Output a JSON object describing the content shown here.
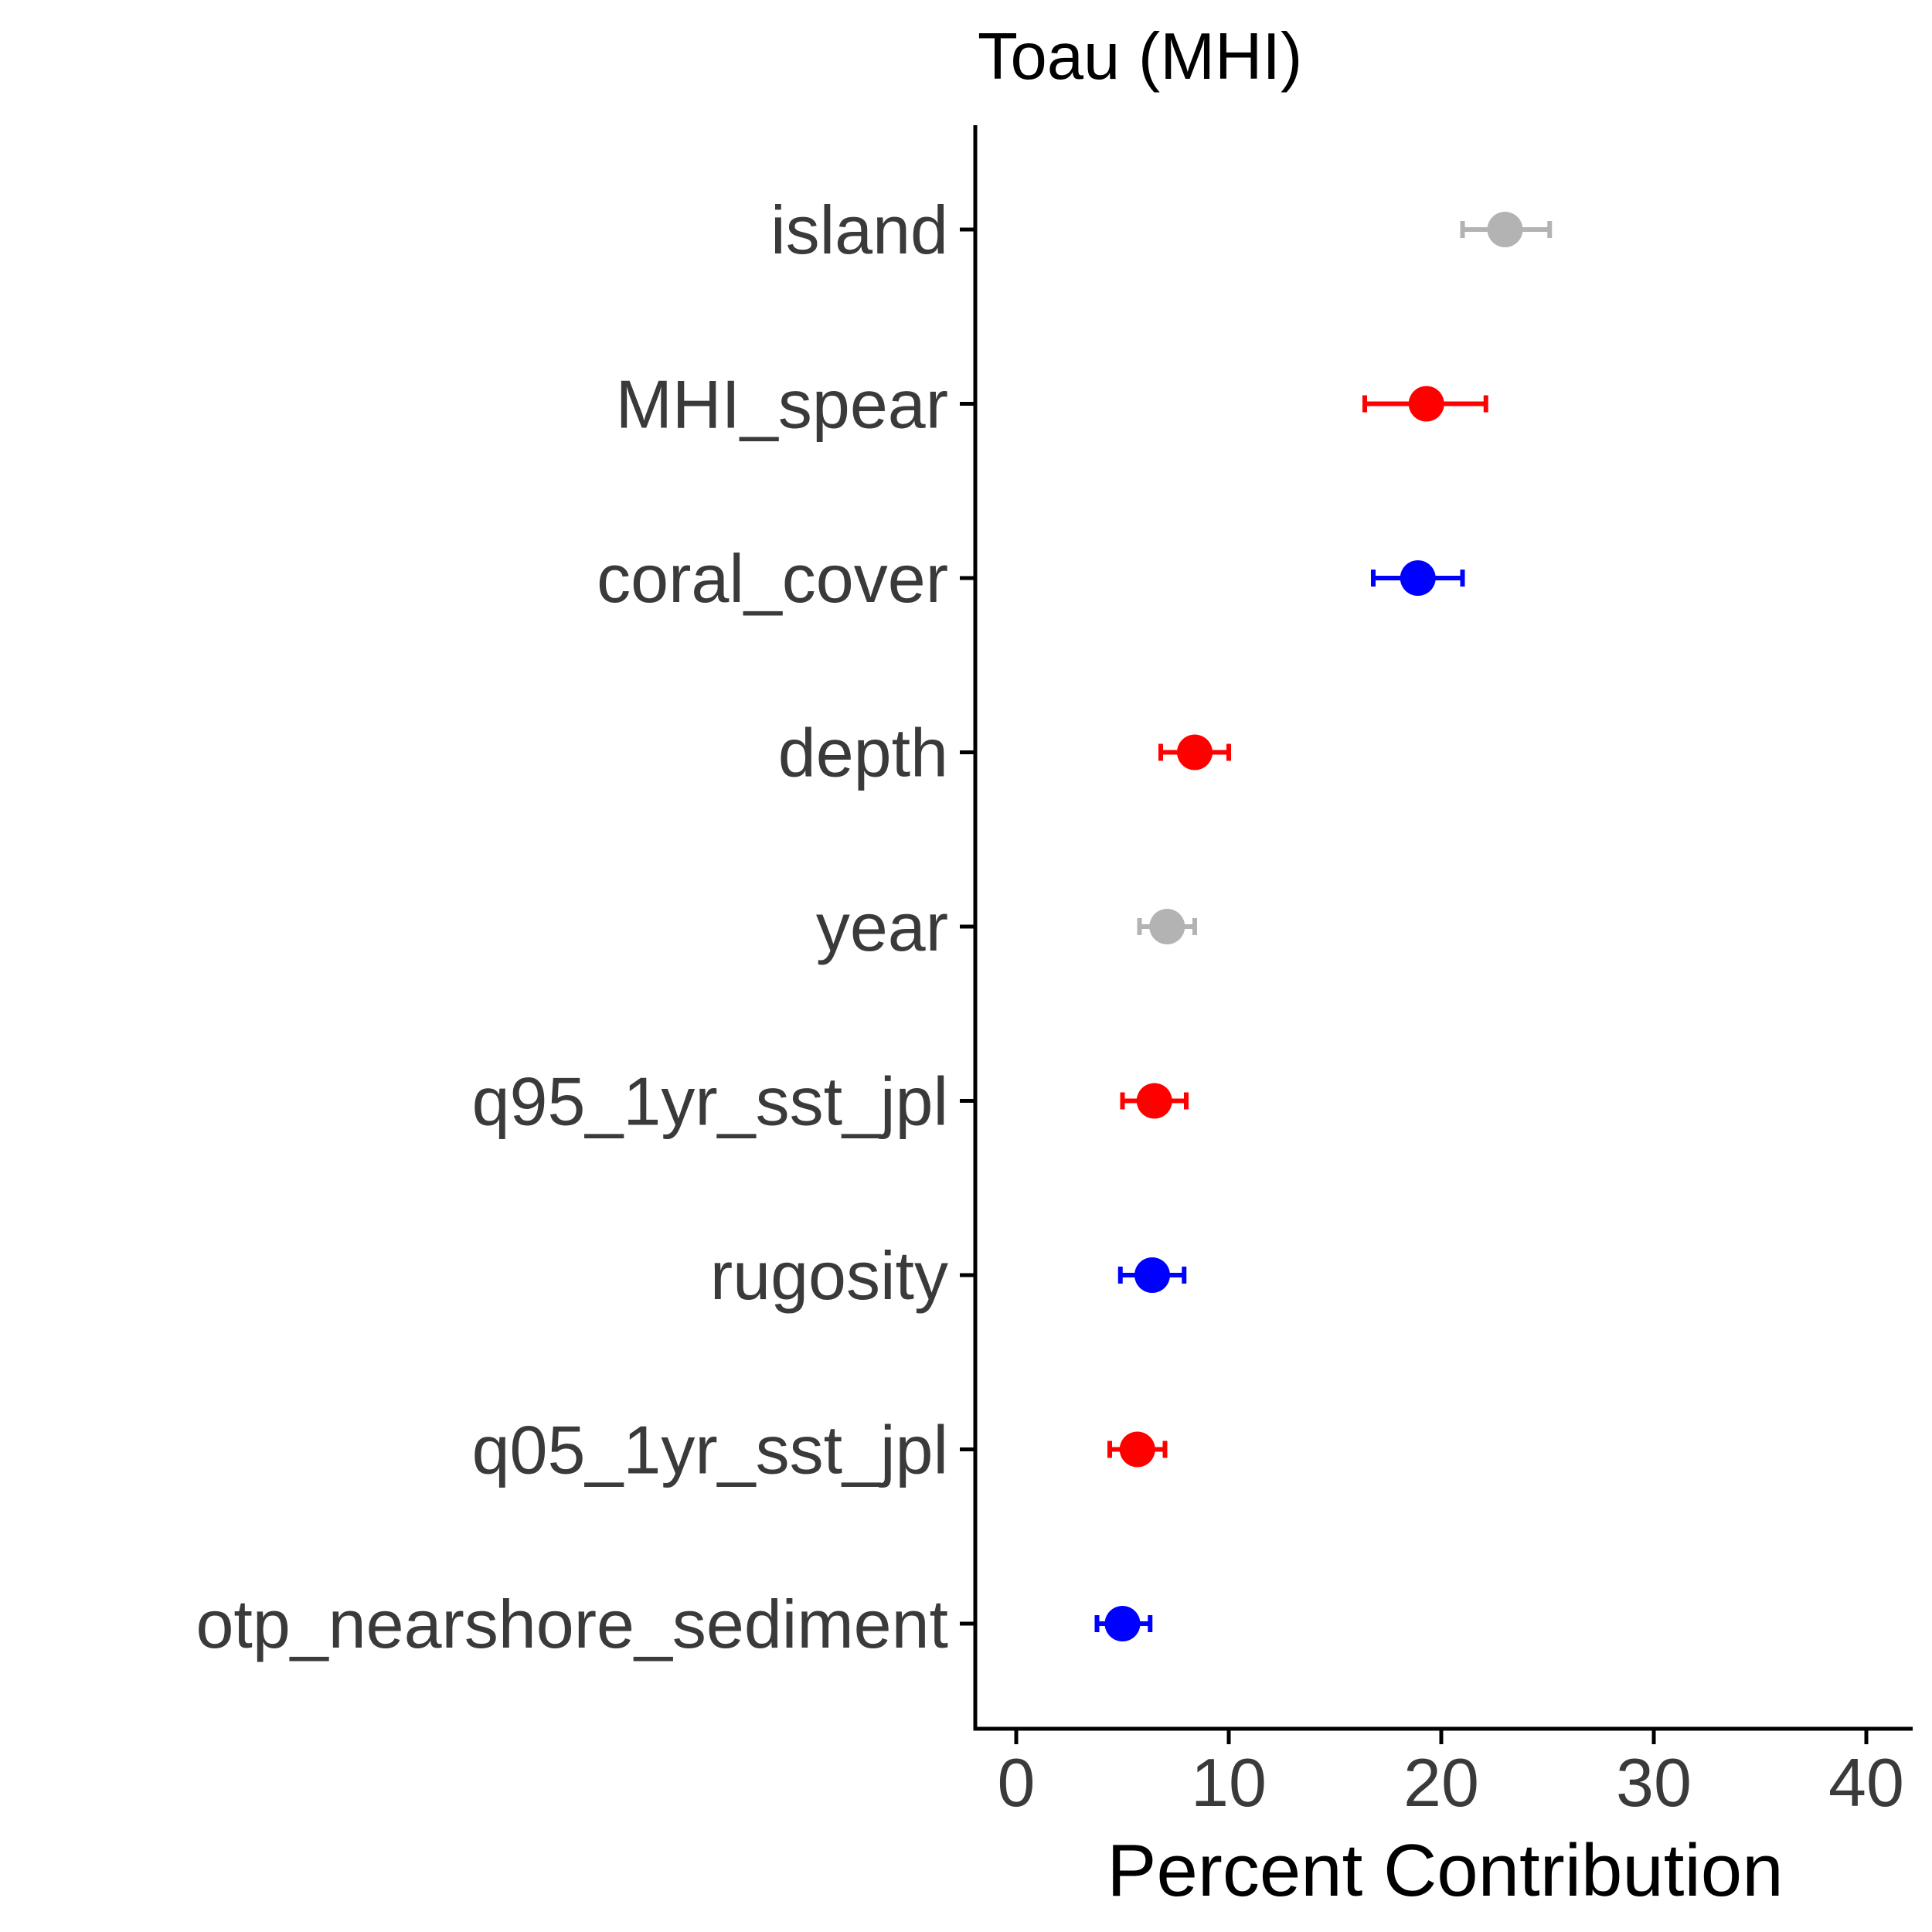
{
  "chart_data": {
    "type": "scatter",
    "title": "Toau (MHI)",
    "xlabel": "Percent Contribution",
    "ylabel": "",
    "xlim": [
      -2,
      42
    ],
    "xticks": [
      0,
      10,
      20,
      30,
      40
    ],
    "grid": false,
    "legend": "none",
    "colors": {
      "red": "#ff0000",
      "blue": "#0000ff",
      "gray": "#b3b3b3"
    },
    "points": [
      {
        "label": "island",
        "value": 23.0,
        "low": 21.0,
        "high": 25.1,
        "color": "gray"
      },
      {
        "label": "MHI_spear",
        "value": 19.3,
        "low": 16.4,
        "high": 22.1,
        "color": "red"
      },
      {
        "label": "coral_cover",
        "value": 18.9,
        "low": 16.8,
        "high": 21.0,
        "color": "blue"
      },
      {
        "label": "depth",
        "value": 8.4,
        "low": 6.8,
        "high": 10.0,
        "color": "red"
      },
      {
        "label": "year",
        "value": 7.1,
        "low": 5.8,
        "high": 8.4,
        "color": "gray"
      },
      {
        "label": "q95_1yr_sst_jpl",
        "value": 6.5,
        "low": 5.0,
        "high": 8.0,
        "color": "red"
      },
      {
        "label": "rugosity",
        "value": 6.4,
        "low": 4.9,
        "high": 7.9,
        "color": "blue"
      },
      {
        "label": "q05_1yr_sst_jpl",
        "value": 5.7,
        "low": 4.4,
        "high": 7.0,
        "color": "red"
      },
      {
        "label": "otp_nearshore_sediment",
        "value": 5.0,
        "low": 3.8,
        "high": 6.3,
        "color": "blue"
      }
    ]
  }
}
